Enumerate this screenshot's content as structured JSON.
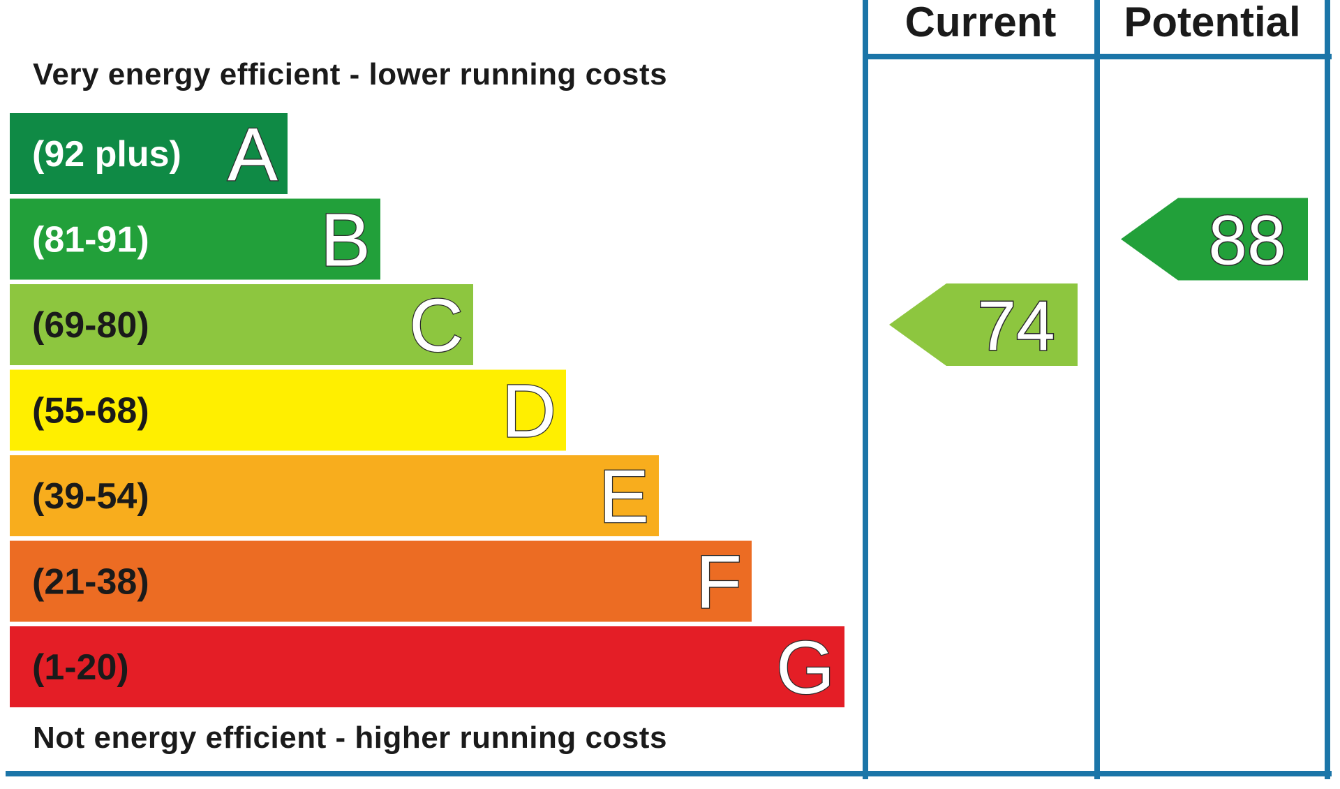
{
  "chart_data": {
    "type": "bar",
    "top_caption": "Very energy efficient - lower running costs",
    "bottom_caption": "Not energy efficient - higher running costs",
    "columns": [
      "Current",
      "Potential"
    ],
    "bands": [
      {
        "letter": "A",
        "range": "(92 plus)",
        "min": 92,
        "max": 100,
        "color": "#0f8a45",
        "text_color": "#ffffff"
      },
      {
        "letter": "B",
        "range": "(81-91)",
        "min": 81,
        "max": 91,
        "color": "#22a03a",
        "text_color": "#ffffff"
      },
      {
        "letter": "C",
        "range": "(69-80)",
        "min": 69,
        "max": 80,
        "color": "#8dc63f",
        "text_color": "#1a1a1a"
      },
      {
        "letter": "D",
        "range": "(55-68)",
        "min": 55,
        "max": 68,
        "color": "#ffef00",
        "text_color": "#1a1a1a"
      },
      {
        "letter": "E",
        "range": "(39-54)",
        "min": 39,
        "max": 54,
        "color": "#f8ad1d",
        "text_color": "#1a1a1a"
      },
      {
        "letter": "F",
        "range": "(21-38)",
        "min": 21,
        "max": 38,
        "color": "#ec6c23",
        "text_color": "#1a1a1a"
      },
      {
        "letter": "G",
        "range": "(1-20)",
        "min": 1,
        "max": 20,
        "color": "#e41e26",
        "text_color": "#1a1a1a"
      }
    ],
    "current": {
      "value": 74,
      "band": "C",
      "color": "#8dc63f"
    },
    "potential": {
      "value": 88,
      "band": "B",
      "color": "#22a03a"
    },
    "frame_color": "#1b75a8"
  }
}
